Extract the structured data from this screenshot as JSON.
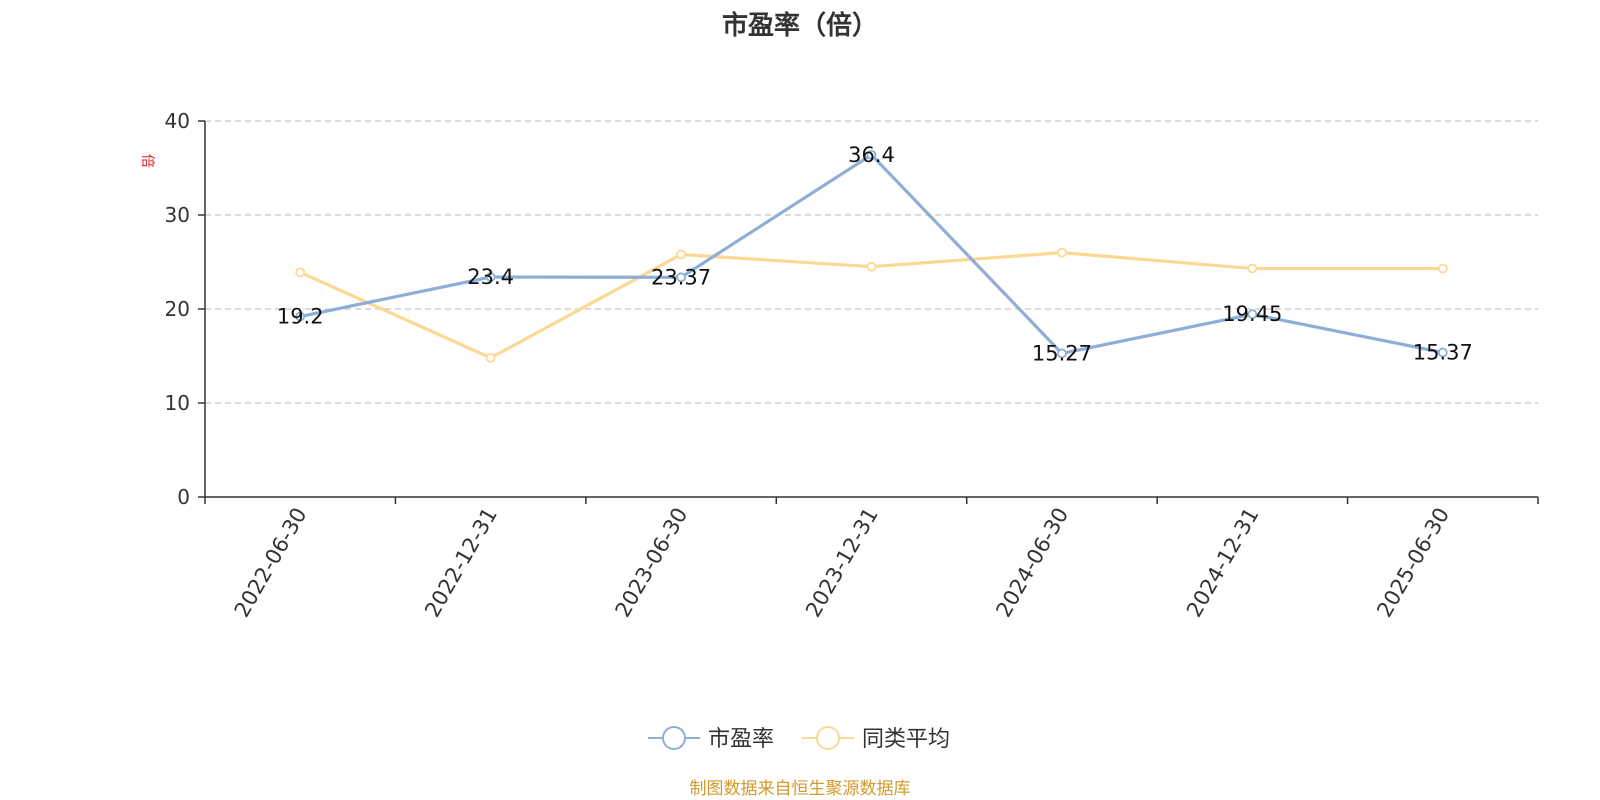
{
  "chart_data": {
    "type": "line",
    "title": "市盈率（倍）",
    "ylabel": "倍",
    "ylabel_color": "#dd2222",
    "ylim": [
      0,
      40
    ],
    "yticks": [
      0,
      10,
      20,
      30,
      40
    ],
    "grid": true,
    "categories": [
      "2022-06-30",
      "2022-12-31",
      "2023-06-30",
      "2023-12-31",
      "2024-06-30",
      "2024-12-31",
      "2025-06-30"
    ],
    "series": [
      {
        "name": "市盈率",
        "color": "#8eaed8",
        "values": [
          19.2,
          23.4,
          23.37,
          36.4,
          15.27,
          19.45,
          15.37
        ],
        "labels": [
          "19.2",
          "23.4",
          "23.37",
          "36.4",
          "15.27",
          "19.45",
          "15.37"
        ]
      },
      {
        "name": "同类平均",
        "color": "#fcd895",
        "values": [
          23.9,
          14.8,
          25.8,
          24.5,
          26.0,
          24.3,
          24.3
        ]
      }
    ],
    "legend_position": "bottom-center"
  },
  "source_text": "制图数据来自恒生聚源数据库",
  "source_color": "#d39a2b"
}
